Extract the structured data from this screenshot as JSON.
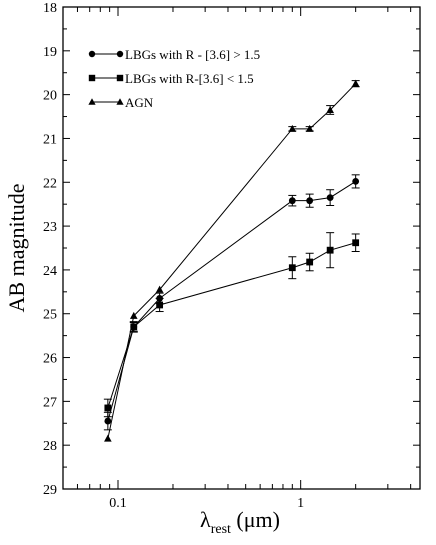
{
  "chart_data": {
    "type": "line",
    "xlabel_main": "λ",
    "xlabel_sub": "rest",
    "xlabel_unit": " (μm)",
    "ylabel": "AB magnitude",
    "xscale": "log",
    "xlim": [
      0.05,
      4.5
    ],
    "ylim": [
      29,
      18
    ],
    "y_inverted": true,
    "grid": false,
    "legend_position": "top-left",
    "x_ticks": [
      {
        "value": 0.1,
        "label": "0.1"
      },
      {
        "value": 1,
        "label": "1"
      }
    ],
    "x_minor_ticks": [
      0.06,
      0.07,
      0.08,
      0.09,
      0.2,
      0.3,
      0.4,
      0.5,
      0.6,
      0.7,
      0.8,
      0.9,
      2,
      3,
      4
    ],
    "y_ticks": [
      18,
      19,
      20,
      21,
      22,
      23,
      24,
      25,
      26,
      27,
      28,
      29
    ],
    "series": [
      {
        "name": "LBGs with R - [3.6] > 1.5",
        "marker": "circle",
        "points": [
          {
            "x": 0.088,
            "y": 27.45,
            "err": 0.2
          },
          {
            "x": 0.122,
            "y": 25.3,
            "err": 0.12
          },
          {
            "x": 0.169,
            "y": 24.65,
            "err": 0.12
          },
          {
            "x": 0.9,
            "y": 22.42,
            "err": 0.12
          },
          {
            "x": 1.12,
            "y": 22.42,
            "err": 0.15
          },
          {
            "x": 1.45,
            "y": 22.35,
            "err": 0.18
          },
          {
            "x": 2.0,
            "y": 21.98,
            "err": 0.15
          }
        ]
      },
      {
        "name": "LBGs with R-[3.6] < 1.5",
        "marker": "square",
        "points": [
          {
            "x": 0.088,
            "y": 27.15,
            "err": 0.2
          },
          {
            "x": 0.122,
            "y": 25.3,
            "err": 0.1
          },
          {
            "x": 0.169,
            "y": 24.8,
            "err": 0.15
          },
          {
            "x": 0.9,
            "y": 23.95,
            "err": 0.25
          },
          {
            "x": 1.12,
            "y": 23.82,
            "err": 0.2
          },
          {
            "x": 1.45,
            "y": 23.55,
            "err": 0.4
          },
          {
            "x": 2.0,
            "y": 23.38,
            "err": 0.2
          }
        ]
      },
      {
        "name": "AGN",
        "marker": "triangle",
        "points": [
          {
            "x": 0.088,
            "y": 27.85,
            "err": 0
          },
          {
            "x": 0.122,
            "y": 25.05,
            "err": 0
          },
          {
            "x": 0.169,
            "y": 24.45,
            "err": 0
          },
          {
            "x": 0.9,
            "y": 20.78,
            "err": 0.05
          },
          {
            "x": 1.12,
            "y": 20.78,
            "err": 0.05
          },
          {
            "x": 1.45,
            "y": 20.35,
            "err": 0.1
          },
          {
            "x": 2.0,
            "y": 19.75,
            "err": 0.07
          }
        ]
      }
    ]
  }
}
